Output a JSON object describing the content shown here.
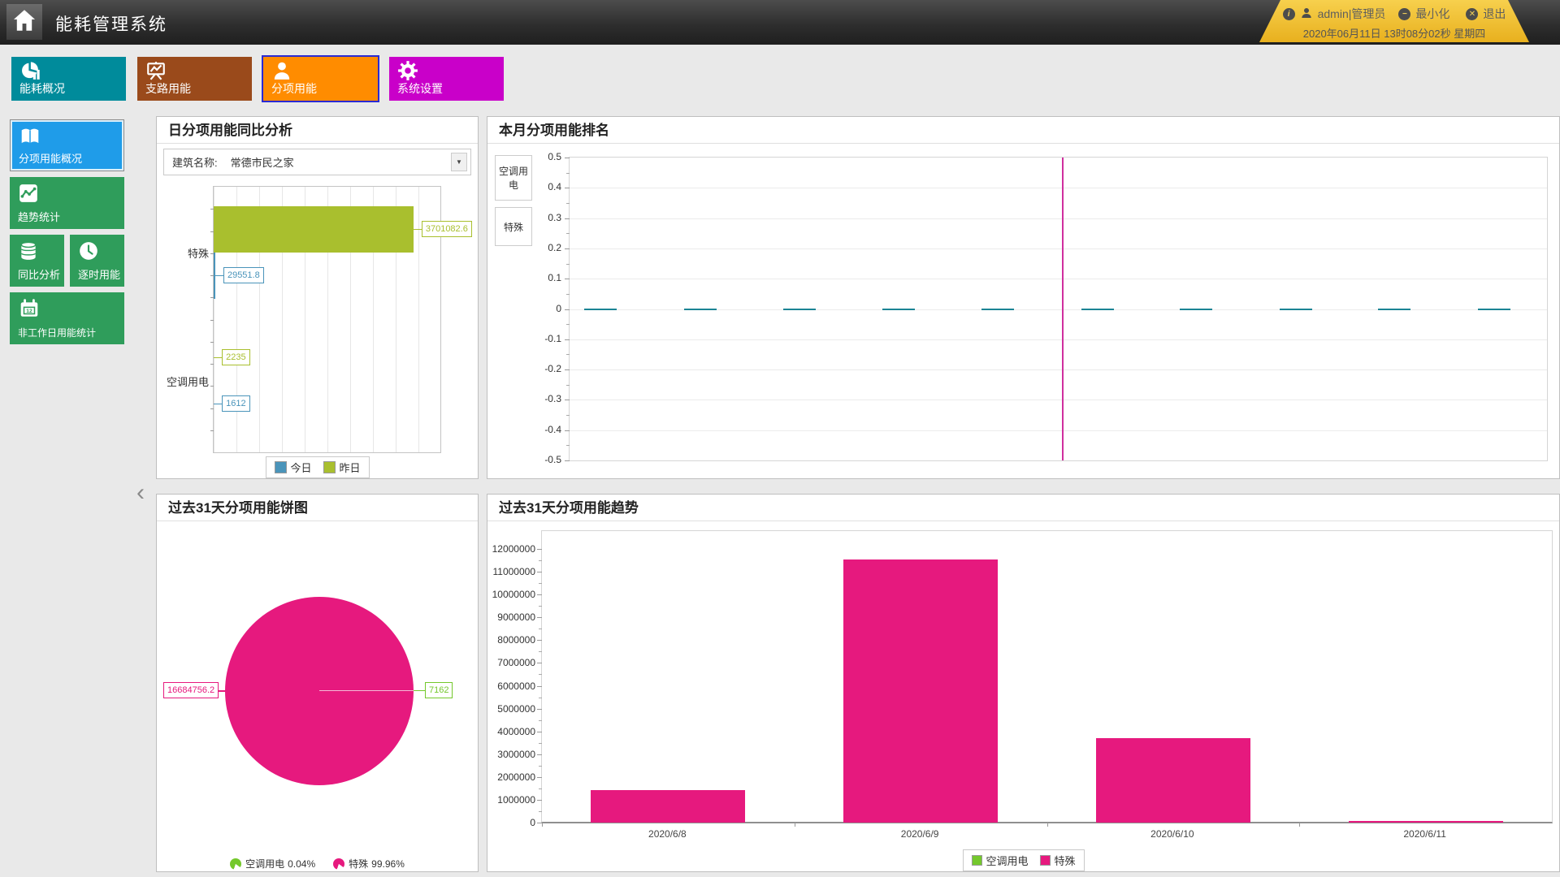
{
  "header": {
    "title": "能耗管理系统",
    "user": "admin|管理员",
    "minimize_label": "最小化",
    "logout_label": "退出",
    "datetime": "2020年06月11日 13时08分02秒 星期四",
    "badge_color": "#f0c231"
  },
  "nav": {
    "items": [
      {
        "label": "能耗概况",
        "color": "#008b9b",
        "icon": "pie-chart-icon",
        "active": false
      },
      {
        "label": "支路用能",
        "color": "#9a4a1b",
        "icon": "presentation-chart-icon",
        "active": false
      },
      {
        "label": "分项用能",
        "color": "#ff8c00",
        "icon": "person-icon",
        "active": true
      },
      {
        "label": "系统设置",
        "color": "#c900c9",
        "icon": "gear-icon",
        "active": false
      }
    ]
  },
  "sidebar": {
    "items": [
      {
        "label": "分项用能概况",
        "color": "#1f9ce9",
        "active": true
      },
      {
        "label": "趋势统计",
        "color": "#2f9d5b",
        "active": false
      },
      {
        "label": "同比分析",
        "color": "#2f9d5b",
        "active": false
      },
      {
        "label": "逐时用能",
        "color": "#2f9d5b",
        "active": false
      },
      {
        "label": "非工作日用能统计",
        "color": "#2f9d5b",
        "active": false
      }
    ],
    "calendar_badge": "12"
  },
  "panels": {
    "daily_compare": {
      "title": "日分项用能同比分析",
      "building_label": "建筑名称:",
      "building_value": "常德市民之家"
    },
    "monthly_rank": {
      "title": "本月分项用能排名",
      "row_labels": [
        "空调用电",
        "特殊"
      ]
    },
    "pie31": {
      "title": "过去31天分项用能饼图"
    },
    "trend31": {
      "title": "过去31天分项用能趋势"
    }
  },
  "chart_data": [
    {
      "type": "bar",
      "orientation": "horizontal",
      "title": "日分项用能同比分析",
      "categories": [
        "特殊",
        "空调用电"
      ],
      "group_center_fractions": [
        0.247,
        0.73
      ],
      "series": [
        {
          "name": "今日",
          "color": "#4a94ba",
          "values": [
            29551.8,
            1612
          ],
          "value_labels": [
            "29551.8",
            "1612"
          ]
        },
        {
          "name": "昨日",
          "color": "#a9bf2e",
          "values": [
            3701082.6,
            2235
          ],
          "value_labels": [
            "3701082.6",
            "2235"
          ]
        }
      ],
      "xlim": [
        0,
        4200000
      ],
      "legend_position": "bottom"
    },
    {
      "type": "bar",
      "title": "本月分项用能排名",
      "ylim": [
        -0.5,
        0.5
      ],
      "ytick_step": 0.1,
      "zero_markers": {
        "count": 10,
        "color": "#1b8494",
        "centers_fraction": [
          0.032,
          0.134,
          0.235,
          0.337,
          0.438,
          0.54,
          0.641,
          0.743,
          0.844,
          0.946
        ]
      },
      "vline": {
        "x_fraction": 0.504,
        "color": "#d02f9e"
      }
    },
    {
      "type": "pie",
      "title": "过去31天分项用能饼图",
      "slices": [
        {
          "label": "空调用电",
          "value": 7162,
          "value_label": "7162",
          "percent": "0.04%",
          "color": "#74c82c"
        },
        {
          "label": "特殊",
          "value": 16684756.2,
          "value_label": "16684756.2",
          "percent": "99.96%",
          "color": "#e6197e"
        }
      ],
      "legend_position": "bottom"
    },
    {
      "type": "bar",
      "title": "过去31天分项用能趋势",
      "categories": [
        "2020/6/8",
        "2020/6/9",
        "2020/6/10",
        "2020/6/11"
      ],
      "series": [
        {
          "name": "空调用电",
          "color": "#74c82c",
          "values": [
            0,
            0,
            0,
            0
          ]
        },
        {
          "name": "特殊",
          "color": "#e6197e",
          "values": [
            1430000,
            11550000,
            3700000,
            60000
          ]
        }
      ],
      "ylim": [
        0,
        12000000
      ],
      "ytick_step": 1000000,
      "legend_position": "bottom"
    }
  ]
}
